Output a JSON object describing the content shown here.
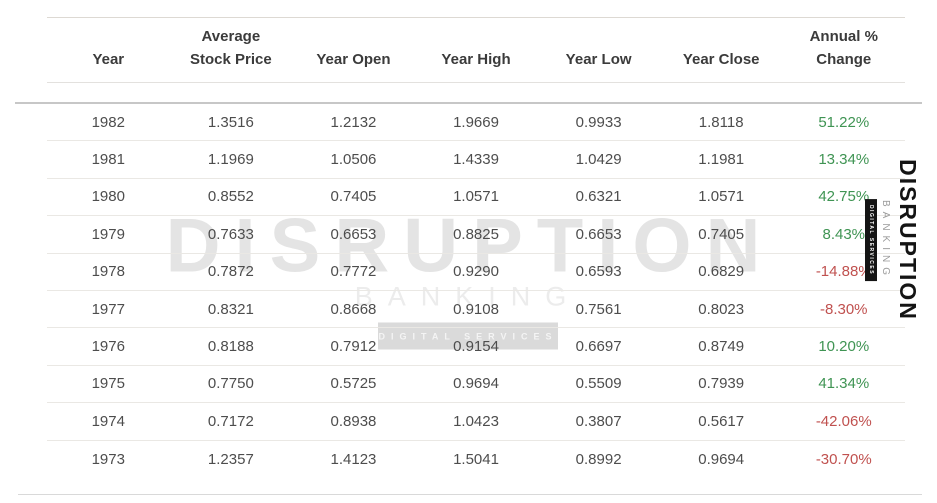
{
  "chart_data": {
    "type": "table",
    "title": "Historical annual stock price data",
    "columns": [
      "Year",
      "Average\nStock Price",
      "Year Open",
      "Year High",
      "Year Low",
      "Year Close",
      "Annual %\nChange"
    ],
    "rows": [
      [
        "1982",
        "1.3516",
        "1.2132",
        "1.9669",
        "0.9933",
        "1.8118",
        "51.22%"
      ],
      [
        "1981",
        "1.1969",
        "1.0506",
        "1.4339",
        "1.0429",
        "1.1981",
        "13.34%"
      ],
      [
        "1980",
        "0.8552",
        "0.7405",
        "1.0571",
        "0.6321",
        "1.0571",
        "42.75%"
      ],
      [
        "1979",
        "0.7633",
        "0.6653",
        "0.8825",
        "0.6653",
        "0.7405",
        "8.43%"
      ],
      [
        "1978",
        "0.7872",
        "0.7772",
        "0.9290",
        "0.6593",
        "0.6829",
        "-14.88%"
      ],
      [
        "1977",
        "0.8321",
        "0.8668",
        "0.9108",
        "0.7561",
        "0.8023",
        "-8.30%"
      ],
      [
        "1976",
        "0.8188",
        "0.7912",
        "0.9154",
        "0.6697",
        "0.8749",
        "10.20%"
      ],
      [
        "1975",
        "0.7750",
        "0.5725",
        "0.9694",
        "0.5509",
        "0.7939",
        "41.34%"
      ],
      [
        "1974",
        "0.7172",
        "0.8938",
        "1.0423",
        "0.3807",
        "0.5617",
        "-42.06%"
      ],
      [
        "1973",
        "1.2357",
        "1.4123",
        "1.5041",
        "0.8992",
        "0.9694",
        "-30.70%"
      ]
    ]
  },
  "watermark": {
    "title": "DISRUPTION",
    "subtitle": "BANKING",
    "badge": "DIGITAL SERVICES"
  },
  "side_logo": {
    "title": "DISRUPTION",
    "subtitle": "BANKING",
    "badge": "DIGITAL SERVICES"
  },
  "colors": {
    "positive": "#3f9453",
    "negative": "#c0514f"
  }
}
